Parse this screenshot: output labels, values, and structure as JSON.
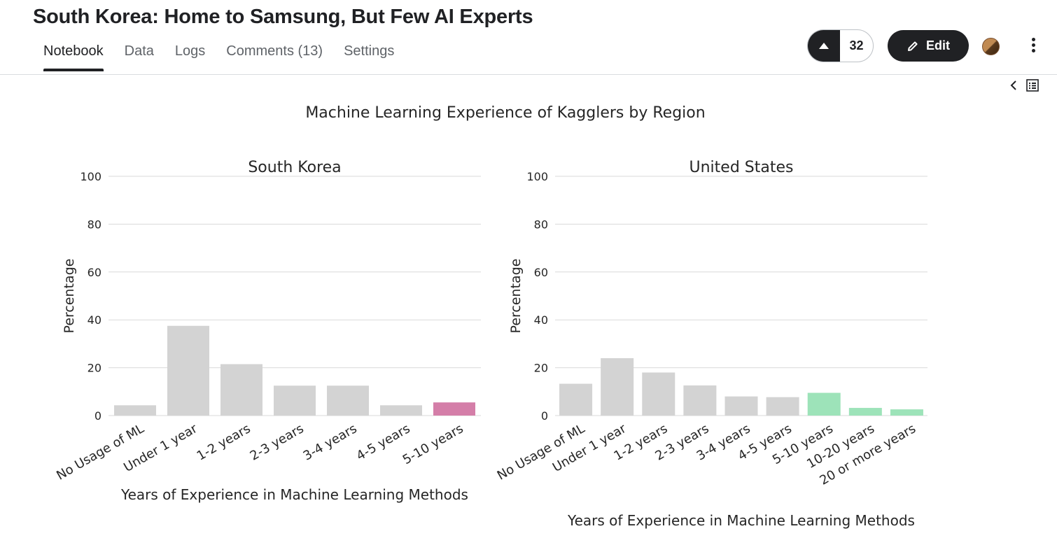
{
  "notebook": {
    "title": "South Korea: Home to Samsung, But Few AI Experts",
    "tabs": [
      "Notebook",
      "Data",
      "Logs",
      "Comments (13)",
      "Settings"
    ],
    "active_tab": "Notebook",
    "vote_count": "32",
    "edit_label": "Edit"
  },
  "chart_data": {
    "type": "bar",
    "title": "Machine Learning Experience of Kagglers by Region",
    "charts": [
      {
        "title": "South Korea",
        "xlabel": "Years of Experience in Machine Learning Methods",
        "ylabel": "Percentage",
        "ylim": [
          0,
          100
        ],
        "yticks": [
          0,
          20,
          40,
          60,
          80,
          100
        ],
        "grid": true,
        "categories": [
          "No Usage of ML",
          "Under 1 year",
          "1-2 years",
          "2-3 years",
          "3-4 years",
          "4-5 years",
          "5-10 years"
        ],
        "values": [
          4.3,
          37.5,
          21.5,
          12.5,
          12.5,
          4.3,
          5.5
        ],
        "colors": [
          "#d3d3d3",
          "#d3d3d3",
          "#d3d3d3",
          "#d3d3d3",
          "#d3d3d3",
          "#d3d3d3",
          "#d47ea8"
        ]
      },
      {
        "title": "United States",
        "xlabel": "Years of Experience in Machine Learning Methods",
        "ylabel": "Percentage",
        "ylim": [
          0,
          100
        ],
        "yticks": [
          0,
          20,
          40,
          60,
          80,
          100
        ],
        "grid": true,
        "categories": [
          "No Usage of ML",
          "Under 1 year",
          "1-2 years",
          "2-3 years",
          "3-4 years",
          "4-5 years",
          "5-10 years",
          "10-20 years",
          "20 or more years"
        ],
        "values": [
          13.3,
          24.0,
          18.0,
          12.6,
          8.0,
          7.7,
          9.5,
          3.2,
          2.6
        ],
        "colors": [
          "#d3d3d3",
          "#d3d3d3",
          "#d3d3d3",
          "#d3d3d3",
          "#d3d3d3",
          "#d3d3d3",
          "#9de3b9",
          "#9de3b9",
          "#9de3b9"
        ]
      }
    ]
  }
}
